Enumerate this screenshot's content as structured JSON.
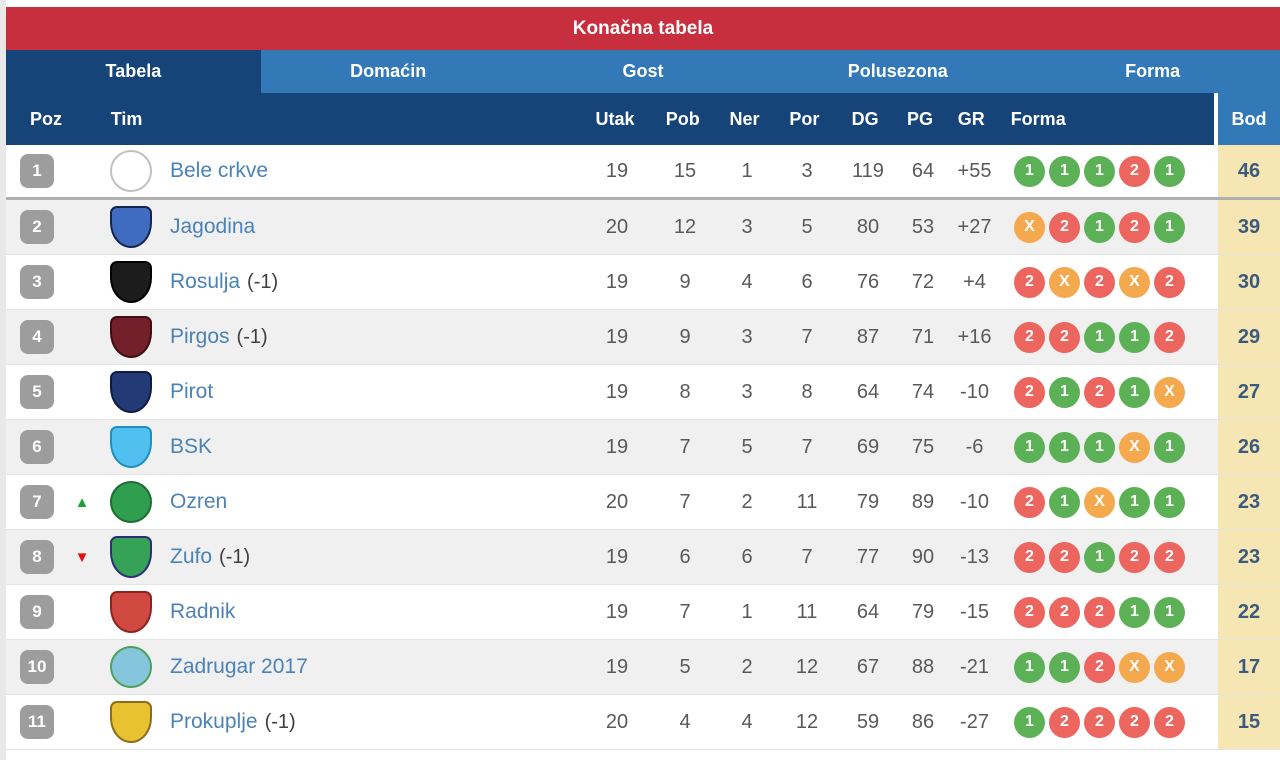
{
  "title": "Konačna tabela",
  "tabs": [
    {
      "label": "Tabela",
      "active": true
    },
    {
      "label": "Domaćin",
      "active": false
    },
    {
      "label": "Gost",
      "active": false
    },
    {
      "label": "Polusezona",
      "active": false
    },
    {
      "label": "Forma",
      "active": false
    }
  ],
  "columns": {
    "poz": "Poz",
    "tim": "Tim",
    "utak": "Utak",
    "pob": "Pob",
    "ner": "Ner",
    "por": "Por",
    "dg": "DG",
    "pg": "PG",
    "gr": "GR",
    "forma": "Forma",
    "bod": "Bod"
  },
  "colors": {
    "red_bar": "#c82f3e",
    "tab_blue": "#3379b7",
    "navy": "#164479",
    "row_alt": "#f0f0f0",
    "pos_badge": "#9d9d9d",
    "team_link": "#4b82b8",
    "stat_text": "#58595b",
    "bod_bg": "#f6e6b4",
    "bod_text": "#3a5a7e",
    "win": "#5cb157",
    "loss": "#ec655e",
    "draw": "#f5a94f",
    "up_arrow": "#1e9e3e",
    "down_arrow": "#e01010"
  },
  "form_legend": {
    "1": "win",
    "2": "loss",
    "X": "draw"
  },
  "rows": [
    {
      "pos": "1",
      "movement": null,
      "team": "Bele crkve",
      "penalty": "",
      "logo": {
        "shape": "circle",
        "bg": "#ffffff",
        "border": "#c0c0c0"
      },
      "utak": "19",
      "pob": "15",
      "ner": "1",
      "por": "3",
      "dg": "119",
      "pg": "64",
      "gr": "+55",
      "form": [
        "1",
        "1",
        "1",
        "2",
        "1"
      ],
      "bod": "46"
    },
    {
      "pos": "2",
      "movement": null,
      "team": "Jagodina",
      "penalty": "",
      "logo": {
        "shape": "shield",
        "bg": "#3f6bc0",
        "border": "#16254e"
      },
      "utak": "20",
      "pob": "12",
      "ner": "3",
      "por": "5",
      "dg": "80",
      "pg": "53",
      "gr": "+27",
      "form": [
        "X",
        "2",
        "1",
        "2",
        "1"
      ],
      "bod": "39"
    },
    {
      "pos": "3",
      "movement": null,
      "team": "Rosulja",
      "penalty": "(-1)",
      "logo": {
        "shape": "shield",
        "bg": "#1c1c1c",
        "border": "#000000"
      },
      "utak": "19",
      "pob": "9",
      "ner": "4",
      "por": "6",
      "dg": "76",
      "pg": "72",
      "gr": "+4",
      "form": [
        "2",
        "X",
        "2",
        "X",
        "2"
      ],
      "bod": "30"
    },
    {
      "pos": "4",
      "movement": null,
      "team": "Pirgos",
      "penalty": "(-1)",
      "logo": {
        "shape": "shield",
        "bg": "#73202a",
        "border": "#3c0f12"
      },
      "utak": "19",
      "pob": "9",
      "ner": "3",
      "por": "7",
      "dg": "87",
      "pg": "71",
      "gr": "+16",
      "form": [
        "2",
        "2",
        "1",
        "1",
        "2"
      ],
      "bod": "29"
    },
    {
      "pos": "5",
      "movement": null,
      "team": "Pirot",
      "penalty": "",
      "logo": {
        "shape": "shield",
        "bg": "#233a77",
        "border": "#101c3e"
      },
      "utak": "19",
      "pob": "8",
      "ner": "3",
      "por": "8",
      "dg": "64",
      "pg": "74",
      "gr": "-10",
      "form": [
        "2",
        "1",
        "2",
        "1",
        "X"
      ],
      "bod": "27"
    },
    {
      "pos": "6",
      "movement": null,
      "team": "BSK",
      "penalty": "",
      "logo": {
        "shape": "shield",
        "bg": "#4fc0ef",
        "border": "#1f8ec0"
      },
      "utak": "19",
      "pob": "7",
      "ner": "5",
      "por": "7",
      "dg": "69",
      "pg": "75",
      "gr": "-6",
      "form": [
        "1",
        "1",
        "1",
        "X",
        "1"
      ],
      "bod": "26"
    },
    {
      "pos": "7",
      "movement": "up",
      "team": "Ozren",
      "penalty": "",
      "logo": {
        "shape": "circle",
        "bg": "#2f9e4e",
        "border": "#1c6e33"
      },
      "utak": "20",
      "pob": "7",
      "ner": "2",
      "por": "11",
      "dg": "79",
      "pg": "89",
      "gr": "-10",
      "form": [
        "2",
        "1",
        "X",
        "1",
        "1"
      ],
      "bod": "23"
    },
    {
      "pos": "8",
      "movement": "down",
      "team": "Zufo",
      "penalty": "(-1)",
      "logo": {
        "shape": "shield",
        "bg": "#35a257",
        "border": "#2b2f78"
      },
      "utak": "19",
      "pob": "6",
      "ner": "6",
      "por": "7",
      "dg": "77",
      "pg": "90",
      "gr": "-13",
      "form": [
        "2",
        "2",
        "1",
        "2",
        "2"
      ],
      "bod": "23"
    },
    {
      "pos": "9",
      "movement": null,
      "team": "Radnik",
      "penalty": "",
      "logo": {
        "shape": "shield",
        "bg": "#d04a41",
        "border": "#8c2320"
      },
      "utak": "19",
      "pob": "7",
      "ner": "1",
      "por": "11",
      "dg": "64",
      "pg": "79",
      "gr": "-15",
      "form": [
        "2",
        "2",
        "2",
        "1",
        "1"
      ],
      "bod": "22"
    },
    {
      "pos": "10",
      "movement": null,
      "team": "Zadrugar 2017",
      "penalty": "",
      "logo": {
        "shape": "circle",
        "bg": "#86c6dd",
        "border": "#4d9f5a"
      },
      "utak": "19",
      "pob": "5",
      "ner": "2",
      "por": "12",
      "dg": "67",
      "pg": "88",
      "gr": "-21",
      "form": [
        "1",
        "1",
        "2",
        "X",
        "X"
      ],
      "bod": "17"
    },
    {
      "pos": "11",
      "movement": null,
      "team": "Prokuplje",
      "penalty": "(-1)",
      "logo": {
        "shape": "shield",
        "bg": "#e9c231",
        "border": "#8a6d1e"
      },
      "utak": "20",
      "pob": "4",
      "ner": "4",
      "por": "12",
      "dg": "59",
      "pg": "86",
      "gr": "-27",
      "form": [
        "1",
        "2",
        "2",
        "2",
        "2"
      ],
      "bod": "15"
    }
  ]
}
